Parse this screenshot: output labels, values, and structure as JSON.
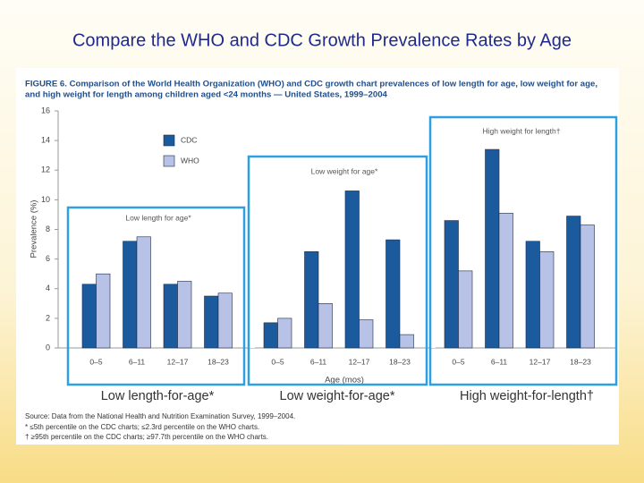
{
  "slide": {
    "title": "Compare the WHO and CDC Growth Prevalence Rates by Age",
    "annotations": [
      "Low length-for-age*",
      "Low weight-for-age*",
      "High weight-for-length†"
    ]
  },
  "chart_data": {
    "type": "bar",
    "title": [
      "FIGURE 6. Comparison of the World Health Organization (WHO) and CDC growth chart prevalences of low length for age, low weight for age,",
      "and high weight for length among children aged <24 months — United States, 1999–2004"
    ],
    "ylabel": "Prevalence (%)",
    "xlabel": "Age (mos)",
    "ylim": [
      0,
      16
    ],
    "yticks": [
      0,
      2,
      4,
      6,
      8,
      10,
      12,
      14,
      16
    ],
    "grid": false,
    "legend": [
      {
        "name": "CDC",
        "color": "#1b5a9c"
      },
      {
        "name": "WHO",
        "color": "#b8c2e6"
      }
    ],
    "panels": [
      {
        "label": "Low length for age*",
        "categories": [
          "0–5",
          "6–11",
          "12–17",
          "18–23"
        ],
        "series": [
          {
            "values": [
              4.3,
              7.2,
              4.3,
              3.5
            ]
          },
          {
            "values": [
              5.0,
              7.5,
              4.5,
              3.7
            ]
          }
        ]
      },
      {
        "label": "Low weight for age*",
        "categories": [
          "0–5",
          "6–11",
          "12–17",
          "18–23"
        ],
        "series": [
          {
            "values": [
              1.7,
              6.5,
              10.6,
              7.3
            ]
          },
          {
            "values": [
              2.0,
              3.0,
              1.9,
              0.9
            ]
          }
        ]
      },
      {
        "label": "High weight for length†",
        "categories": [
          "0–5",
          "6–11",
          "12–17",
          "18–23"
        ],
        "series": [
          {
            "values": [
              8.6,
              13.4,
              7.2,
              8.9
            ]
          },
          {
            "values": [
              5.2,
              9.1,
              6.5,
              8.3
            ]
          }
        ]
      }
    ],
    "source": "Source: Data from the National Health and Nutrition Examination Survey, 1999–2004.",
    "notes": [
      "* ≤5th percentile on the CDC charts; ≤2.3rd percentile on the WHO charts.",
      "† ≥95th percentile on the CDC charts; ≥97.7th percentile on the WHO charts."
    ]
  }
}
